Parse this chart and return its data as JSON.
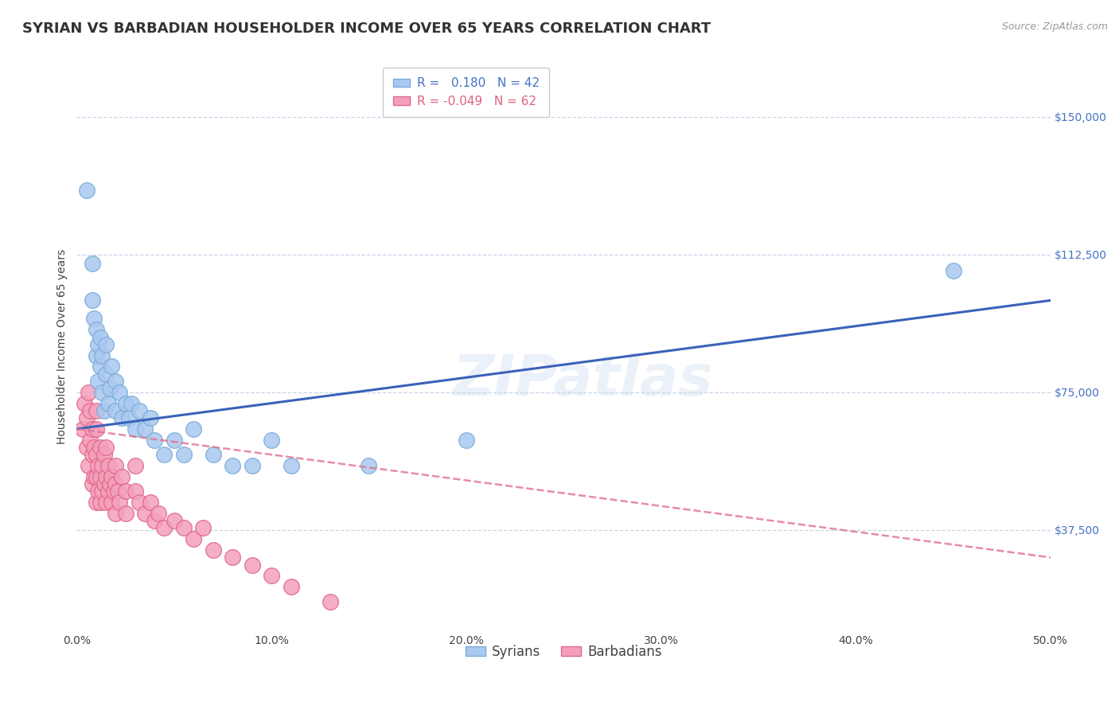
{
  "title": "SYRIAN VS BARBADIAN HOUSEHOLDER INCOME OVER 65 YEARS CORRELATION CHART",
  "source": "Source: ZipAtlas.com",
  "ylabel": "Householder Income Over 65 years",
  "xlabel_ticks": [
    "0.0%",
    "10.0%",
    "20.0%",
    "30.0%",
    "40.0%",
    "50.0%"
  ],
  "ytick_labels": [
    "$37,500",
    "$75,000",
    "$112,500",
    "$150,000"
  ],
  "ytick_values": [
    37500,
    75000,
    112500,
    150000
  ],
  "xlim": [
    0.0,
    0.5
  ],
  "ylim": [
    10000,
    165000
  ],
  "syrian_color": "#aac8f0",
  "barbadian_color": "#f4a0bc",
  "syrian_edge": "#7aacd8",
  "barbadian_edge": "#e06888",
  "watermark": "ZIPatlas",
  "background_color": "#ffffff",
  "grid_color": "#c8d4e8",
  "syrian_line_color": "#3a62b8",
  "barbadian_line_color": "#e07090",
  "title_fontsize": 13,
  "label_fontsize": 10,
  "tick_fontsize": 10,
  "legend_fontsize": 11,
  "watermark_fontsize": 52,
  "watermark_color": "#c8d8f0",
  "watermark_alpha": 0.35,
  "syrian_scatter_x": [
    0.005,
    0.008,
    0.008,
    0.009,
    0.01,
    0.01,
    0.011,
    0.011,
    0.012,
    0.012,
    0.013,
    0.013,
    0.014,
    0.015,
    0.015,
    0.016,
    0.017,
    0.018,
    0.02,
    0.02,
    0.022,
    0.023,
    0.025,
    0.027,
    0.028,
    0.03,
    0.032,
    0.035,
    0.038,
    0.04,
    0.045,
    0.05,
    0.055,
    0.06,
    0.07,
    0.08,
    0.09,
    0.1,
    0.11,
    0.15,
    0.2,
    0.45
  ],
  "syrian_scatter_y": [
    130000,
    100000,
    110000,
    95000,
    85000,
    92000,
    88000,
    78000,
    82000,
    90000,
    75000,
    85000,
    70000,
    80000,
    88000,
    72000,
    76000,
    82000,
    70000,
    78000,
    75000,
    68000,
    72000,
    68000,
    72000,
    65000,
    70000,
    65000,
    68000,
    62000,
    58000,
    62000,
    58000,
    65000,
    58000,
    55000,
    55000,
    62000,
    55000,
    55000,
    62000,
    108000
  ],
  "barbadian_scatter_x": [
    0.003,
    0.004,
    0.005,
    0.005,
    0.006,
    0.006,
    0.007,
    0.007,
    0.008,
    0.008,
    0.008,
    0.009,
    0.009,
    0.01,
    0.01,
    0.01,
    0.01,
    0.01,
    0.011,
    0.011,
    0.012,
    0.012,
    0.012,
    0.013,
    0.013,
    0.014,
    0.014,
    0.015,
    0.015,
    0.015,
    0.016,
    0.016,
    0.017,
    0.018,
    0.018,
    0.019,
    0.02,
    0.02,
    0.02,
    0.021,
    0.022,
    0.023,
    0.025,
    0.025,
    0.03,
    0.03,
    0.032,
    0.035,
    0.038,
    0.04,
    0.042,
    0.045,
    0.05,
    0.055,
    0.06,
    0.065,
    0.07,
    0.08,
    0.09,
    0.1,
    0.11,
    0.13
  ],
  "barbadian_scatter_y": [
    65000,
    72000,
    60000,
    68000,
    75000,
    55000,
    62000,
    70000,
    50000,
    58000,
    65000,
    52000,
    60000,
    45000,
    52000,
    58000,
    65000,
    70000,
    48000,
    55000,
    45000,
    52000,
    60000,
    48000,
    55000,
    50000,
    58000,
    45000,
    52000,
    60000,
    48000,
    55000,
    50000,
    45000,
    52000,
    48000,
    42000,
    50000,
    55000,
    48000,
    45000,
    52000,
    42000,
    48000,
    48000,
    55000,
    45000,
    42000,
    45000,
    40000,
    42000,
    38000,
    40000,
    38000,
    35000,
    38000,
    32000,
    30000,
    28000,
    25000,
    22000,
    18000
  ]
}
